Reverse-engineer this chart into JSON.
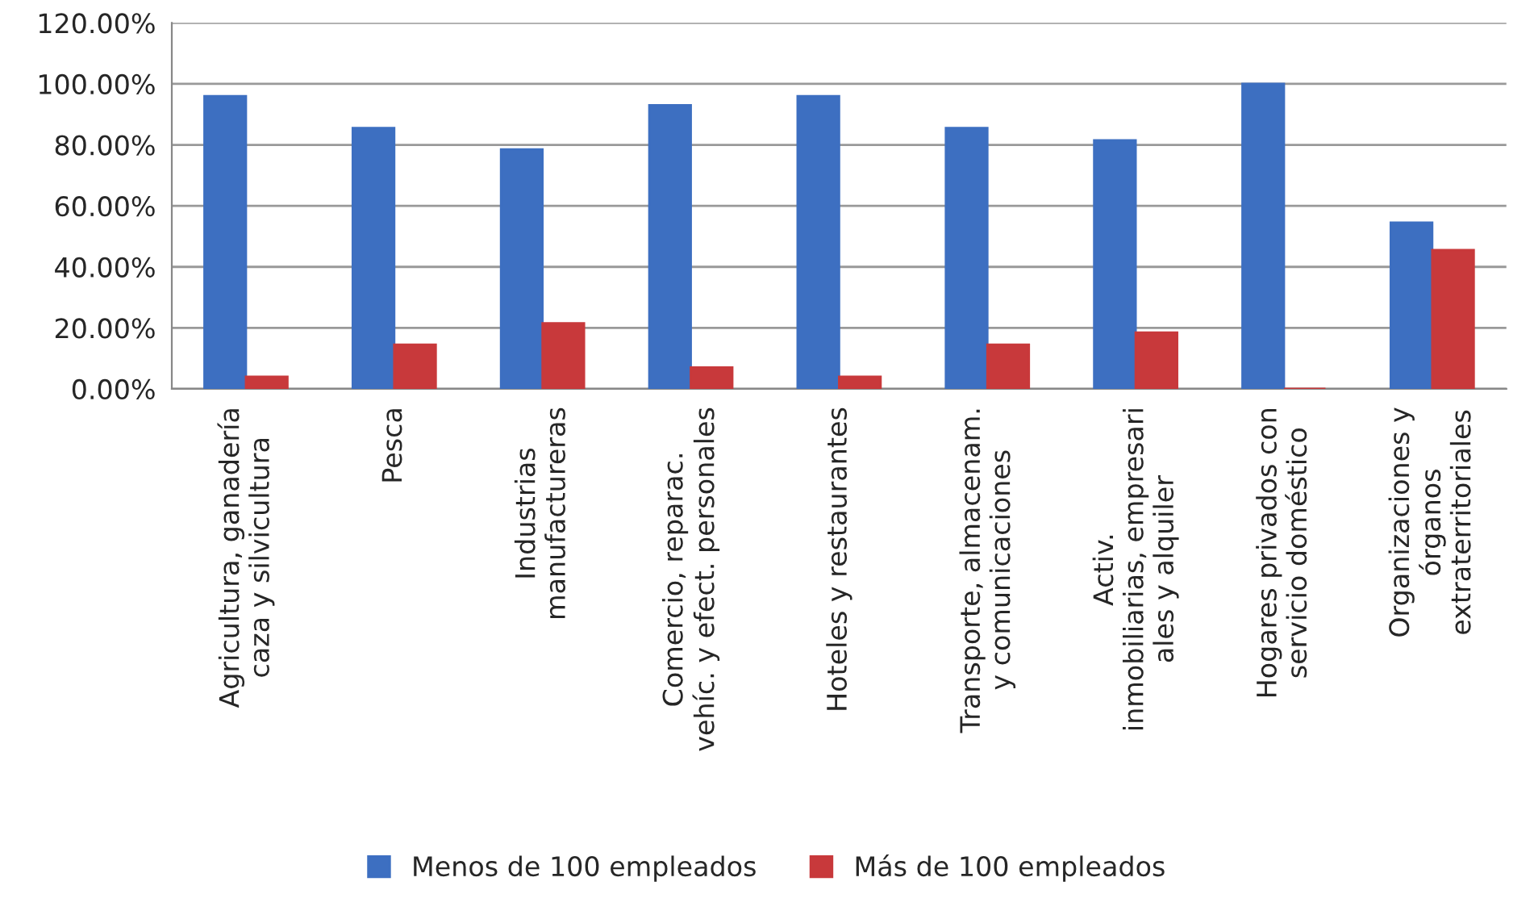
{
  "chart_data": {
    "type": "bar",
    "categories": [
      "Agricultura, ganadería\ncaza y silvicultura",
      "Pesca",
      "Industrias\nmanufactureras",
      "Comercio, reparac.\nvehíc. y efect. personales",
      "Hoteles y restaurantes",
      "Transporte, almacenam.\ny comunicaciones",
      "Activ.\ninmobiliarias, empresari\nales y alquiler",
      "Hogares privados con\nservicio doméstico",
      "Organizaciones y\nórganos\nextraterritoriales"
    ],
    "series": [
      {
        "name": "Menos de 100 empleados",
        "color": "#3d6fc1",
        "values": [
          96,
          85.5,
          78.5,
          93,
          96,
          85.5,
          81.5,
          100,
          54.5
        ]
      },
      {
        "name": "Más de 100 empleados",
        "color": "#c8393b",
        "values": [
          4,
          14.5,
          21.5,
          7,
          4,
          14.5,
          18.5,
          0,
          45.5
        ]
      }
    ],
    "ylim": [
      0,
      120
    ],
    "yticks": [
      {
        "value": 0,
        "label": "0.00%"
      },
      {
        "value": 20,
        "label": "20.00%"
      },
      {
        "value": 40,
        "label": "40.00%"
      },
      {
        "value": 60,
        "label": "60.00%"
      },
      {
        "value": 80,
        "label": "80.00%"
      },
      {
        "value": 100,
        "label": "100.00%"
      },
      {
        "value": 120,
        "label": "120.00%"
      }
    ],
    "grid": "y",
    "legend": "bottom"
  }
}
